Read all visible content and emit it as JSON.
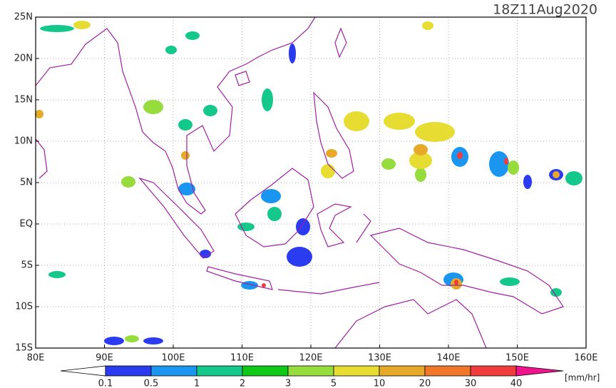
{
  "map": {
    "title": "18Z11Aug2020",
    "xlim": [
      80,
      160
    ],
    "ylim": [
      -15,
      25
    ],
    "xticks": [
      {
        "value": 80,
        "label": "80E"
      },
      {
        "value": 90,
        "label": "90E"
      },
      {
        "value": 100,
        "label": "100E"
      },
      {
        "value": 110,
        "label": "110E"
      },
      {
        "value": 120,
        "label": "120E"
      },
      {
        "value": 130,
        "label": "130E"
      },
      {
        "value": 140,
        "label": "140E"
      },
      {
        "value": 150,
        "label": "150E"
      },
      {
        "value": 160,
        "label": "160E"
      }
    ],
    "yticks": [
      {
        "value": 25,
        "label": "25N"
      },
      {
        "value": 20,
        "label": "20N"
      },
      {
        "value": 15,
        "label": "15N"
      },
      {
        "value": 10,
        "label": "10N"
      },
      {
        "value": 5,
        "label": "5N"
      },
      {
        "value": 0,
        "label": "EQ"
      },
      {
        "value": -5,
        "label": "5S"
      },
      {
        "value": -10,
        "label": "10S"
      },
      {
        "value": -15,
        "label": "15S"
      }
    ],
    "grid": true,
    "colorbar": {
      "levels": [
        0.1,
        0.5,
        1,
        2,
        3,
        5,
        10,
        20,
        30,
        40
      ],
      "colors": [
        "#ffffff",
        "#2b3cf0",
        "#1a96f0",
        "#14c88c",
        "#10c818",
        "#96dc3c",
        "#e6dc32",
        "#e6aa28",
        "#f07828",
        "#f03c3c",
        "#f0148c"
      ],
      "unit": "[mm/hr]"
    }
  }
}
